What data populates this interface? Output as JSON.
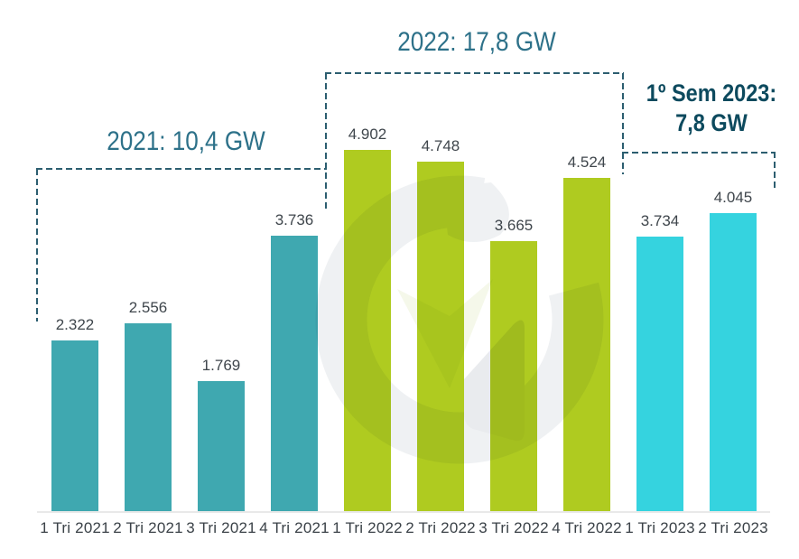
{
  "chart_data": {
    "type": "bar",
    "unit": "MW",
    "categories": [
      "1 Tri 2021",
      "2 Tri 2021",
      "3 Tri 2021",
      "4 Tri 2021",
      "1 Tri 2022",
      "2 Tri 2022",
      "3 Tri 2022",
      "4 Tri 2022",
      "1 Tri 2023",
      "2 Tri 2023"
    ],
    "values": [
      2322,
      2556,
      1769,
      3736,
      4902,
      4748,
      3665,
      4524,
      3734,
      4045
    ],
    "value_labels": [
      "2.322",
      "2.556",
      "1.769",
      "3.736",
      "4.902",
      "4.748",
      "3.665",
      "4.524",
      "3.734",
      "4.045"
    ],
    "bar_colors": [
      "#3fa8b0",
      "#3fa8b0",
      "#3fa8b0",
      "#3fa8b0",
      "#afcb20",
      "#afcb20",
      "#afcb20",
      "#afcb20",
      "#35d3df",
      "#35d3df"
    ],
    "ylim": [
      0,
      5200
    ],
    "grid": false,
    "legend": false,
    "groups": [
      {
        "name": "2021",
        "label": "2021: 10,4 GW",
        "total_gw": "10,4",
        "color": "#3fa8b0"
      },
      {
        "name": "2022",
        "label": "2022: 17,8 GW",
        "total_gw": "17,8",
        "color": "#afcb20"
      },
      {
        "name": "2023",
        "label_line1": "1º Sem 2023:",
        "label_line2": "7,8 GW",
        "total_gw": "7,8",
        "color": "#35d3df"
      }
    ]
  },
  "colors": {
    "annotation_text": "#2d7189",
    "annotation_2023_text": "#0d4a5e",
    "bracket_dash": "#2c5e70",
    "value_label_text": "#3f464c",
    "axis_label_text": "#3b4248",
    "axis_line": "#e9e9e9"
  },
  "watermark": {
    "icon": "greener-g-logo-watermark"
  }
}
